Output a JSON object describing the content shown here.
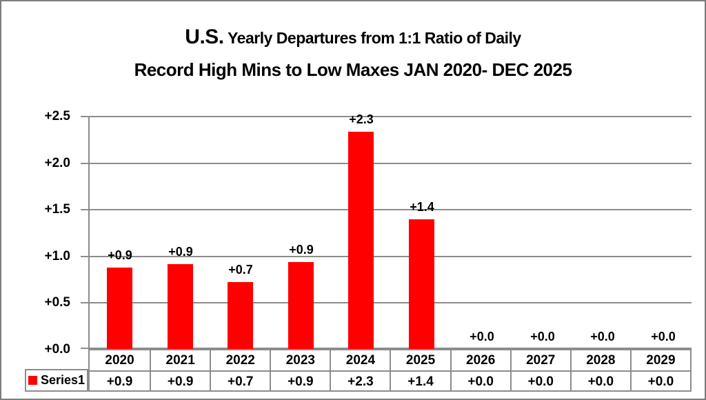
{
  "title": {
    "us": "U.S.",
    "line1_rest": " Yearly Departures from 1:1 Ratio of Daily",
    "line2": "Record High Mins to Low Maxes JAN 2020- DEC 2025"
  },
  "chart_data": {
    "type": "bar",
    "title": "U.S. Yearly Departures from 1:1 Ratio of Daily Record High Mins to Low Maxes JAN 2020- DEC 2025",
    "categories": [
      "2020",
      "2021",
      "2022",
      "2023",
      "2024",
      "2025",
      "2026",
      "2027",
      "2028",
      "2029"
    ],
    "series": [
      {
        "name": "Series1",
        "values": [
          0.9,
          0.9,
          0.7,
          0.9,
          2.3,
          1.4,
          0.0,
          0.0,
          0.0,
          0.0
        ],
        "labels": [
          "+0.9",
          "+0.9",
          "+0.7",
          "+0.9",
          "+2.3",
          "+1.4",
          "+0.0",
          "+0.0",
          "+0.0",
          "+0.0"
        ]
      }
    ],
    "bar_pixel_values": [
      0.87,
      0.91,
      0.72,
      0.93,
      2.33,
      1.39,
      0,
      0,
      0,
      0
    ],
    "series_name": "Series1",
    "ylim": [
      0,
      2.5
    ],
    "ytick_labels": [
      "+0.0",
      "+0.5",
      "+1.0",
      "+1.5",
      "+2.0",
      "+2.5"
    ],
    "xlabel": "",
    "ylabel": "",
    "grid": true,
    "legend_position": "bottom-left-table",
    "bar_color": "#fe0000",
    "grid_color": "#8c8c8c",
    "text_color": "#000000"
  }
}
